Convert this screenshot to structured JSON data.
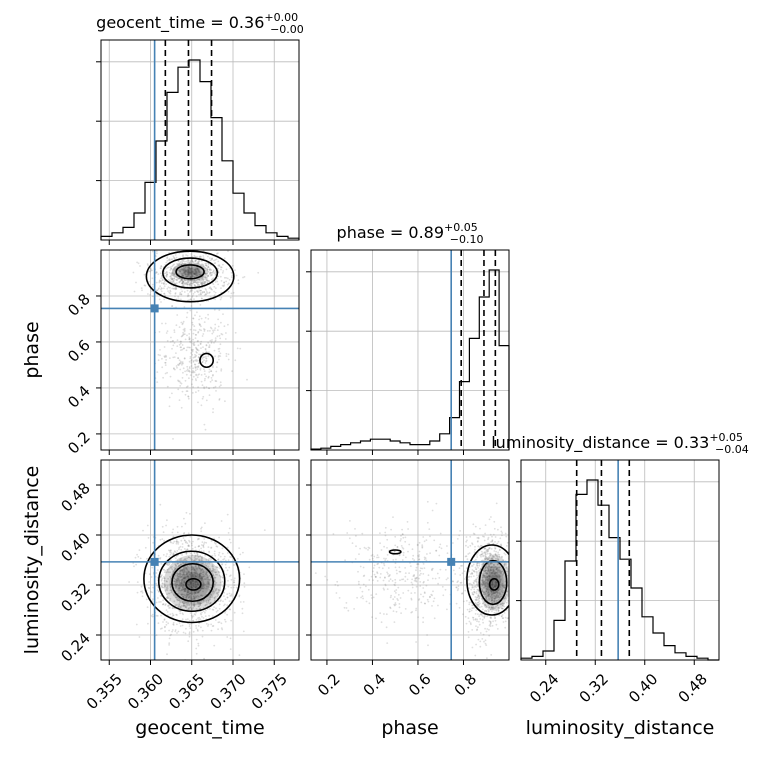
{
  "chart_data": {
    "type": "corner",
    "parameters": [
      {
        "name": "geocent_time",
        "title_prefix": "geocent_time = 0.36",
        "title_plus": "+0.00",
        "title_minus": "−0.00",
        "range": [
          0.354,
          0.378
        ],
        "ticks": [
          0.355,
          0.36,
          0.365,
          0.37,
          0.375
        ],
        "tick_labels": [
          "0.355",
          "0.360",
          "0.365",
          "0.370",
          "0.375"
        ],
        "truth": 0.3605,
        "quantiles": [
          0.3618,
          0.3646,
          0.3674
        ]
      },
      {
        "name": "phase",
        "title_prefix": "phase = 0.89",
        "title_plus": "+0.05",
        "title_minus": "−0.10",
        "range": [
          0.13,
          1.0
        ],
        "ticks": [
          0.2,
          0.4,
          0.6,
          0.8
        ],
        "tick_labels": [
          "0.2",
          "0.4",
          "0.6",
          "0.8"
        ],
        "truth": 0.746,
        "quantiles": [
          0.79,
          0.89,
          0.94
        ]
      },
      {
        "name": "luminosity_distance",
        "title_prefix": "luminosity_distance = 0.33",
        "title_plus": "+0.05",
        "title_minus": "−0.04",
        "range": [
          0.2,
          0.52
        ],
        "ticks": [
          0.24,
          0.32,
          0.4,
          0.48
        ],
        "tick_labels": [
          "0.24",
          "0.32",
          "0.40",
          "0.48"
        ],
        "truth": 0.357,
        "quantiles": [
          0.29,
          0.33,
          0.375
        ]
      }
    ],
    "histograms": [
      [
        0.02,
        0.04,
        0.07,
        0.15,
        0.32,
        0.55,
        0.82,
        0.96,
        1.0,
        0.88,
        0.68,
        0.44,
        0.26,
        0.15,
        0.08,
        0.04,
        0.02,
        0.01
      ],
      [
        0.005,
        0.01,
        0.02,
        0.03,
        0.04,
        0.05,
        0.06,
        0.06,
        0.05,
        0.04,
        0.03,
        0.03,
        0.05,
        0.09,
        0.18,
        0.38,
        0.62,
        0.85,
        1.0,
        0.58
      ],
      [
        0.01,
        0.02,
        0.05,
        0.22,
        0.55,
        0.92,
        1.0,
        0.86,
        0.68,
        0.56,
        0.4,
        0.24,
        0.15,
        0.08,
        0.04,
        0.02,
        0.01,
        0.0
      ]
    ],
    "grid": true,
    "truth_color": "#4682b4",
    "hist_color": "#000000",
    "scatter_color": "#888888"
  }
}
